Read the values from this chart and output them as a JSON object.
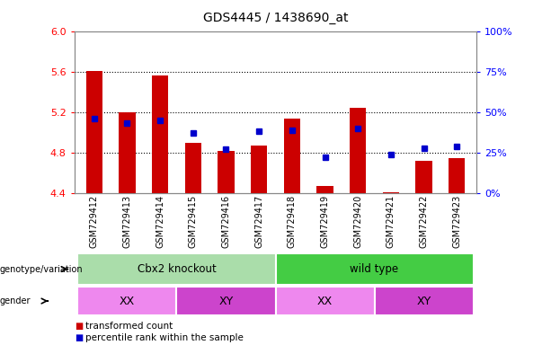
{
  "title": "GDS4445 / 1438690_at",
  "samples": [
    "GSM729412",
    "GSM729413",
    "GSM729414",
    "GSM729415",
    "GSM729416",
    "GSM729417",
    "GSM729418",
    "GSM729419",
    "GSM729420",
    "GSM729421",
    "GSM729422",
    "GSM729423"
  ],
  "bar_base": 4.4,
  "red_values": [
    5.61,
    5.2,
    5.56,
    4.9,
    4.82,
    4.87,
    5.14,
    4.47,
    5.24,
    4.41,
    4.72,
    4.75
  ],
  "blue_values": [
    46,
    43,
    45,
    37,
    27,
    38,
    39,
    22,
    40,
    24,
    28,
    29
  ],
  "ylim_left": [
    4.4,
    6.0
  ],
  "ylim_right": [
    0,
    100
  ],
  "yticks_left": [
    4.4,
    4.8,
    5.2,
    5.6,
    6.0
  ],
  "yticks_right": [
    0,
    25,
    50,
    75,
    100
  ],
  "hlines": [
    4.8,
    5.2,
    5.6
  ],
  "bar_color": "#cc0000",
  "dot_color": "#0000cc",
  "background_color": "#ffffff",
  "plot_bg_color": "#ffffff",
  "genotype_groups": [
    {
      "label": "Cbx2 knockout",
      "start": 0,
      "end": 5,
      "color": "#aaddaa"
    },
    {
      "label": "wild type",
      "start": 6,
      "end": 11,
      "color": "#44cc44"
    }
  ],
  "gender_groups": [
    {
      "label": "XX",
      "start": 0,
      "end": 2,
      "color": "#ee88ee"
    },
    {
      "label": "XY",
      "start": 3,
      "end": 5,
      "color": "#cc44cc"
    },
    {
      "label": "XX",
      "start": 6,
      "end": 8,
      "color": "#ee88ee"
    },
    {
      "label": "XY",
      "start": 9,
      "end": 11,
      "color": "#cc44cc"
    }
  ],
  "legend_items": [
    {
      "label": "transformed count",
      "color": "#cc0000"
    },
    {
      "label": "percentile rank within the sample",
      "color": "#0000cc"
    }
  ]
}
